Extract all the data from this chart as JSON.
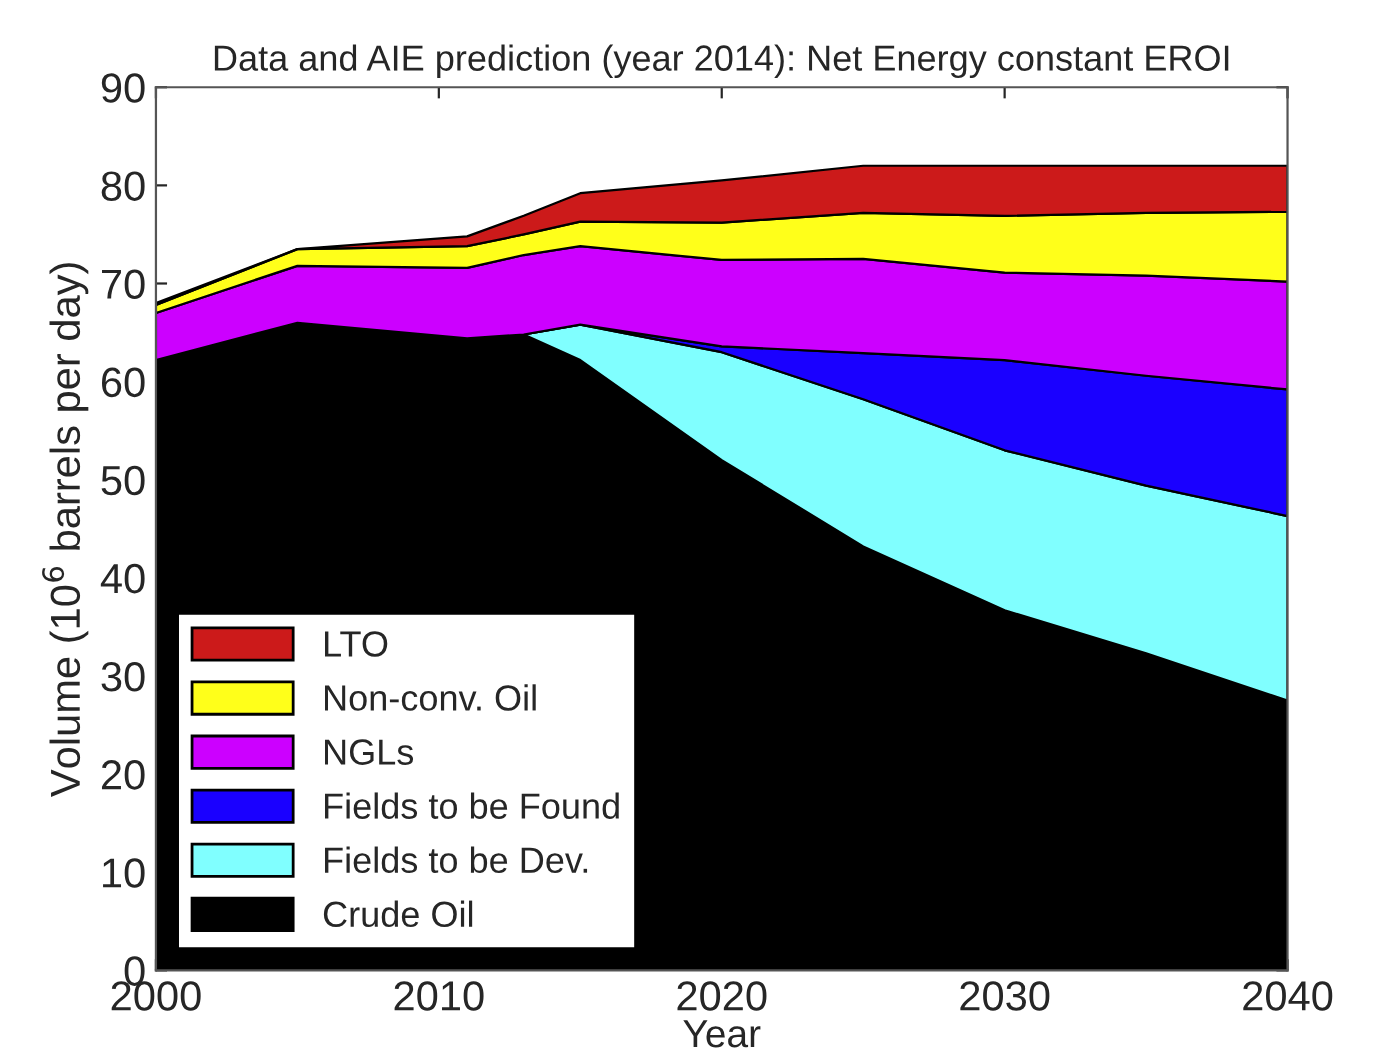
{
  "chart_data": {
    "type": "area",
    "stacked": true,
    "title": "Data and AIE prediction (year 2014): Net Energy constant EROI",
    "xlabel": "Year",
    "ylabel": "Volume (10$^{6}$ barrels per day)",
    "x": [
      2000,
      2005,
      2011,
      2013,
      2015,
      2020,
      2025,
      2030,
      2035,
      2040
    ],
    "series": [
      {
        "name": "Crude Oil",
        "color": "#000000",
        "values": [
          62.2,
          66,
          64.4,
          64.8,
          62.2,
          52,
          43.2,
          36.7,
          32.3,
          27.5
        ]
      },
      {
        "name": "Fields to be Dev.",
        "color": "#80ffff",
        "values": [
          0,
          0,
          0,
          0,
          3.6,
          11,
          15,
          16.3,
          17.1,
          18.8
        ]
      },
      {
        "name": "Fields to be Found",
        "color": "#1a00ff",
        "values": [
          0,
          0,
          0,
          0,
          0,
          0.6,
          4.7,
          9.2,
          11.2,
          12.9
        ]
      },
      {
        "name": "NGLs",
        "color": "#cc00ff",
        "values": [
          4.8,
          5.8,
          7.2,
          8.1,
          8,
          8.8,
          9.6,
          8.9,
          10.2,
          11
        ]
      },
      {
        "name": "Non-conv. Oil",
        "color": "#ffff1a",
        "values": [
          0.8,
          1.7,
          2.2,
          2.1,
          2.5,
          3.8,
          4.7,
          5.8,
          6.4,
          7.1
        ]
      },
      {
        "name": "LTO",
        "color": "#cc1a1a",
        "values": [
          0.2,
          0,
          1,
          1.9,
          2.9,
          4.3,
          4.8,
          5.1,
          4.8,
          4.7
        ]
      }
    ],
    "xlim": [
      2000,
      2040
    ],
    "xticks": [
      2000,
      2010,
      2020,
      2030,
      2040
    ],
    "ylim": [
      0,
      90
    ],
    "yticks": [
      0,
      10,
      20,
      30,
      40,
      50,
      60,
      70,
      80,
      90
    ],
    "grid": false,
    "legend": "bottom left"
  }
}
